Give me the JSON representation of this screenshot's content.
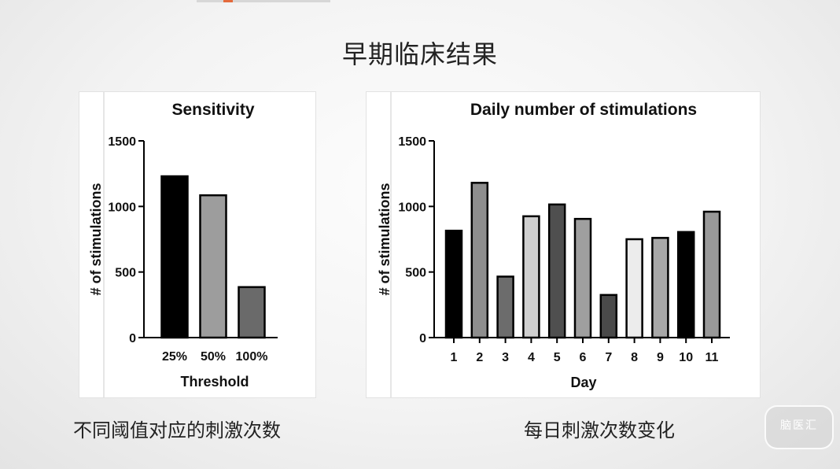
{
  "slide": {
    "title": "早期临床结果",
    "caption_left": "不同阈值对应的刺激次数",
    "caption_right": "每日刺激次数变化",
    "watermark": "脑医汇"
  },
  "chart_data": [
    {
      "type": "bar",
      "title": "Sensitivity",
      "xlabel": "Threshold",
      "ylabel": "# of stimulations",
      "ylim": [
        0,
        1500
      ],
      "yticks": [
        0,
        500,
        1000,
        1500
      ],
      "categories": [
        "25%",
        "50%",
        "100%"
      ],
      "values": [
        1230,
        1085,
        385
      ],
      "colors": [
        "#000000",
        "#9d9d9d",
        "#6a6a6a"
      ],
      "grid": false
    },
    {
      "type": "bar",
      "title": "Daily number of stimulations",
      "xlabel": "Day",
      "ylabel": "# of stimulations",
      "ylim": [
        0,
        1500
      ],
      "yticks": [
        0,
        500,
        1000,
        1500
      ],
      "categories": [
        "1",
        "2",
        "3",
        "4",
        "5",
        "6",
        "7",
        "8",
        "9",
        "10",
        "11"
      ],
      "values": [
        815,
        1180,
        465,
        925,
        1015,
        905,
        325,
        750,
        760,
        805,
        960
      ],
      "colors": [
        "#000000",
        "#8e8e8e",
        "#6c6c6c",
        "#cfcfcf",
        "#4f4f4f",
        "#9f9f9f",
        "#4a4a4a",
        "#ececec",
        "#a8a8a8",
        "#000000",
        "#999999"
      ],
      "grid": false
    }
  ]
}
